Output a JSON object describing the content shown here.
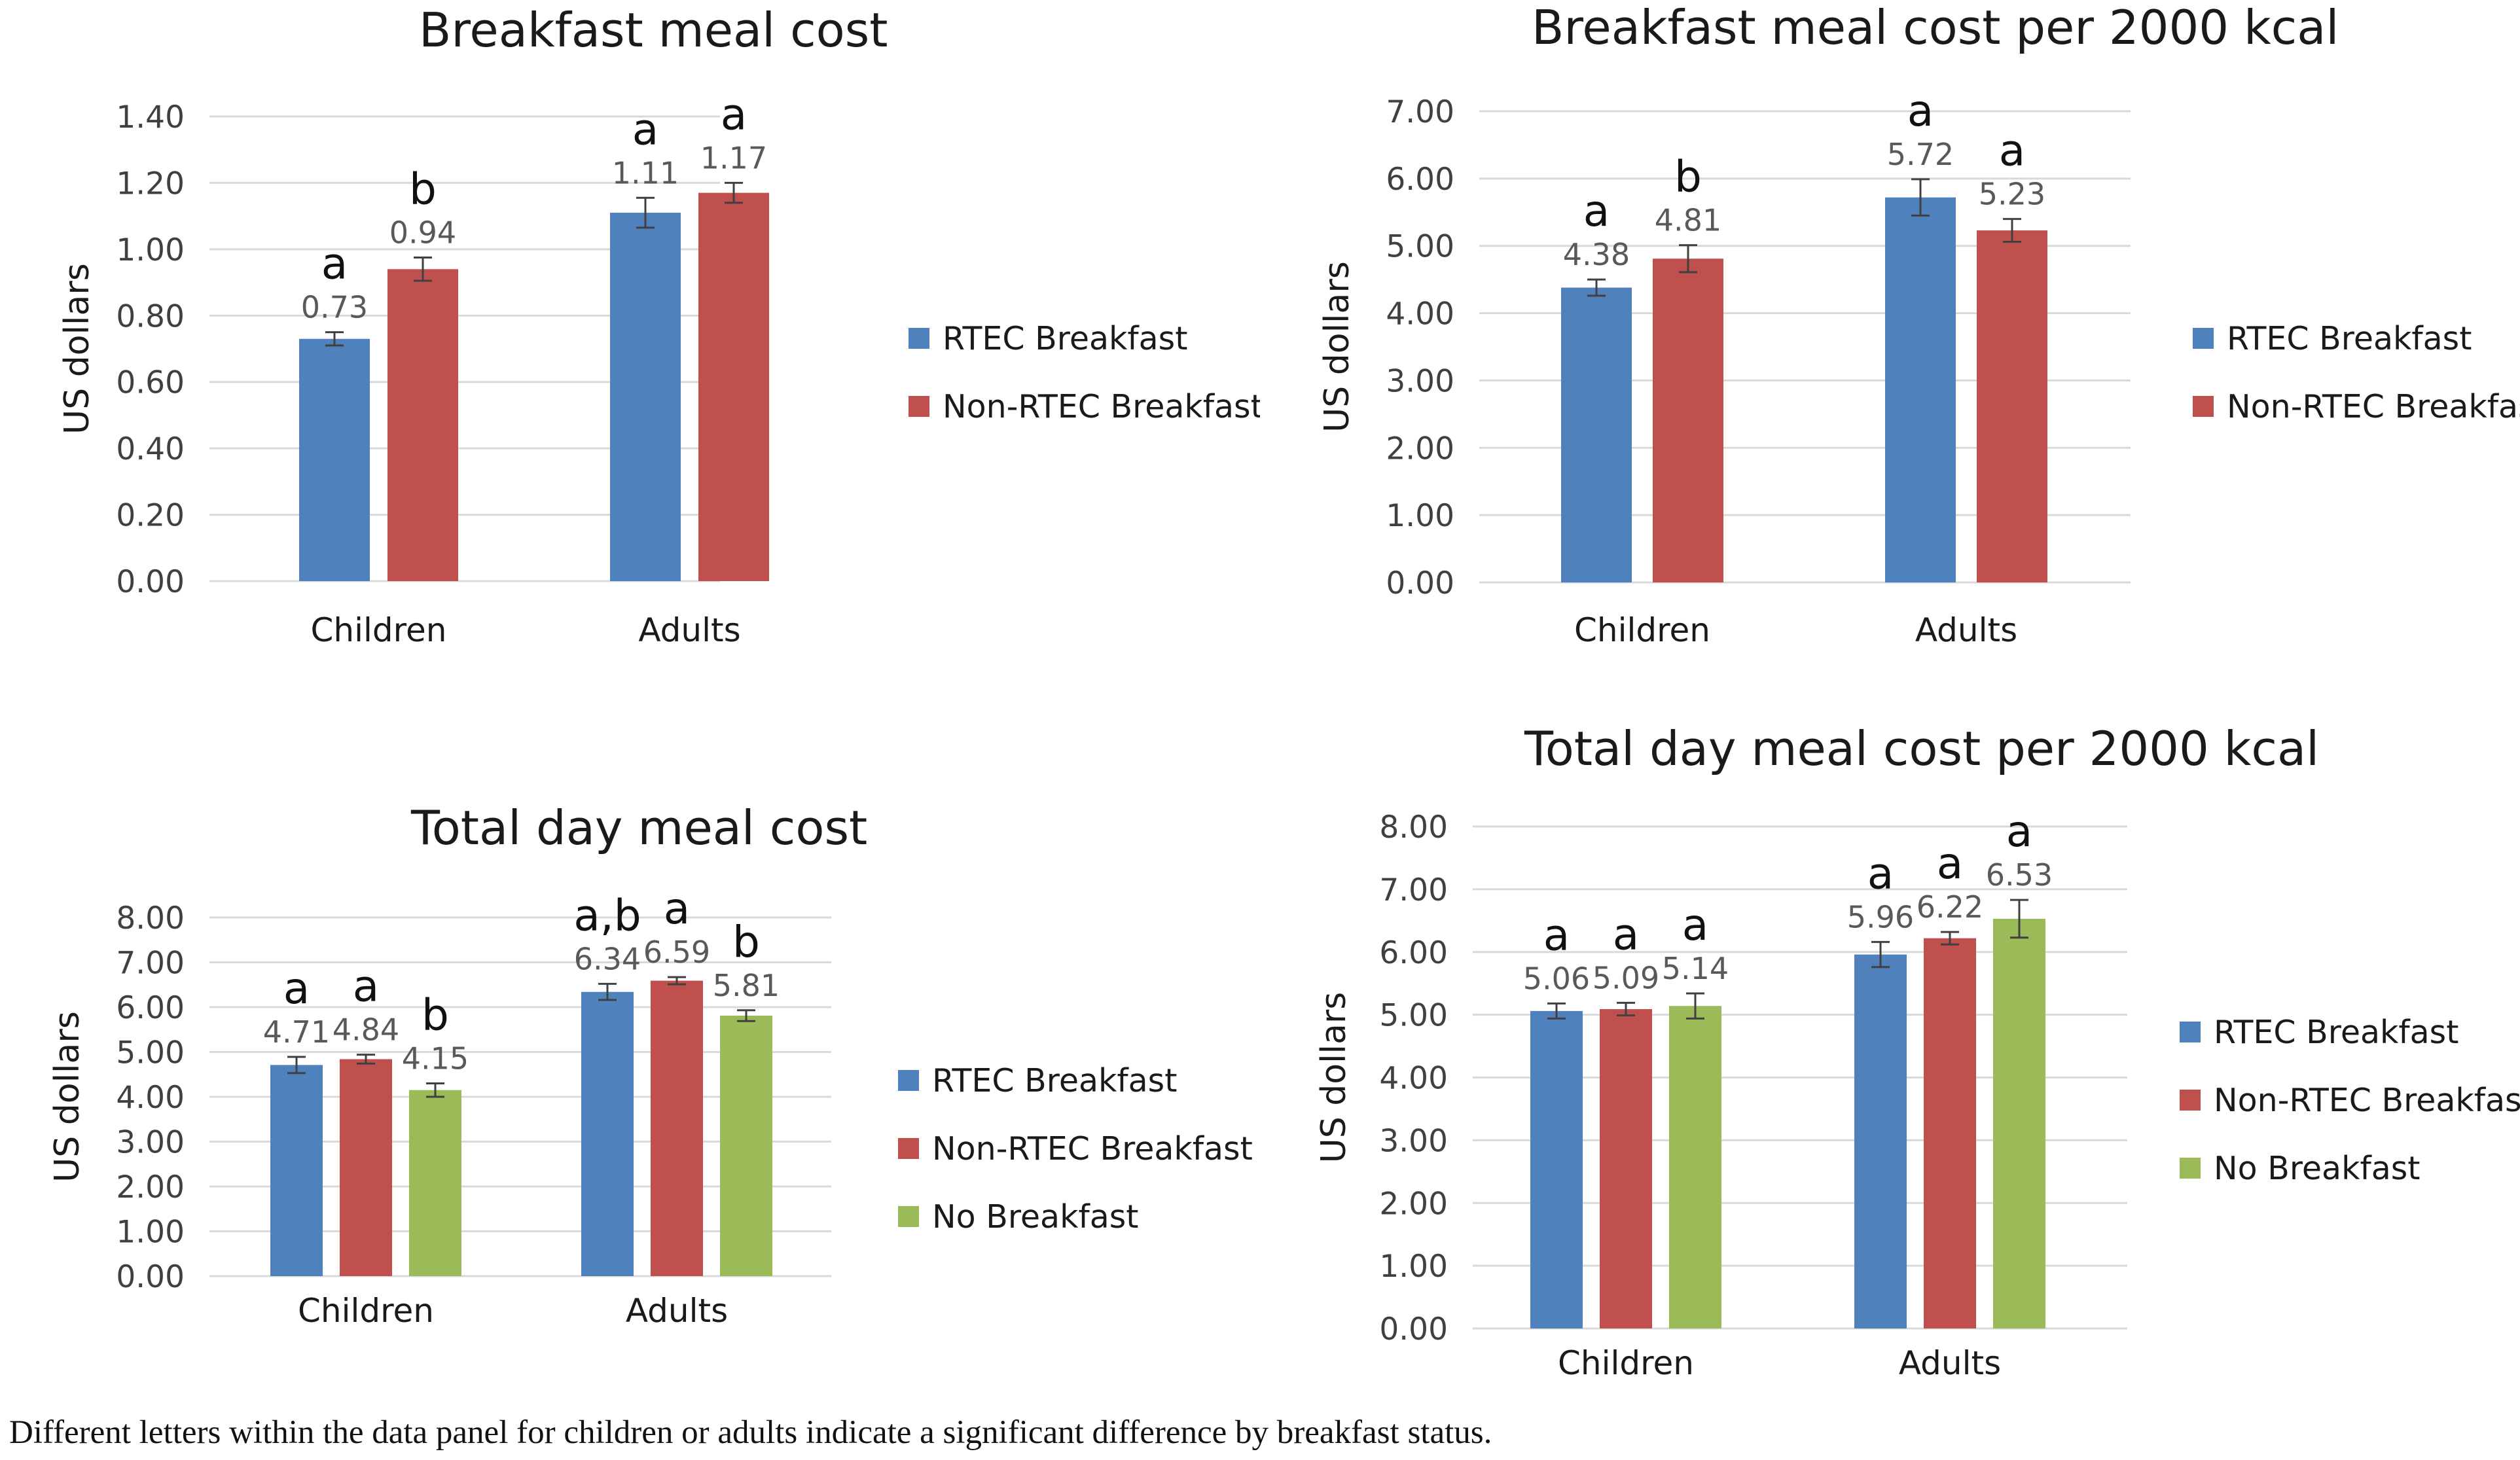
{
  "colors": {
    "rtec": "#4F81BD",
    "non_rtec": "#C0504D",
    "none": "#9BBB59",
    "grid": "#D9D9D9",
    "text": "#404040",
    "value": "#595959"
  },
  "footnote": "Different letters within the data panel for children or adults indicate a significant difference by breakfast status.",
  "chart_data": [
    {
      "type": "bar",
      "title": "Breakfast meal cost",
      "ylabel": "US dollars",
      "xlabel": "",
      "ylim": [
        0,
        1.4
      ],
      "yticks": [
        "0.00",
        "0.20",
        "0.40",
        "0.60",
        "0.80",
        "1.00",
        "1.20",
        "1.40"
      ],
      "grid": true,
      "legend_position": "right",
      "categories": [
        "Children",
        "Adults"
      ],
      "series": [
        {
          "name": "RTEC Breakfast",
          "color": "#4F81BD",
          "values": [
            0.73,
            1.11
          ],
          "labels": [
            "0.73",
            "1.11"
          ],
          "errors": [
            0.02,
            0.045
          ],
          "letters": [
            "a",
            "a"
          ]
        },
        {
          "name": "Non-RTEC Breakfast",
          "color": "#C0504D",
          "values": [
            0.94,
            1.17
          ],
          "labels": [
            "0.94",
            "1.17"
          ],
          "errors": [
            0.035,
            0.03
          ],
          "letters": [
            "b",
            "a"
          ]
        }
      ]
    },
    {
      "type": "bar",
      "title": "Breakfast meal cost per 2000 kcal",
      "ylabel": "US dollars",
      "xlabel": "",
      "ylim": [
        0,
        7
      ],
      "yticks": [
        "0.00",
        "1.00",
        "2.00",
        "3.00",
        "4.00",
        "5.00",
        "6.00",
        "7.00"
      ],
      "grid": true,
      "legend_position": "right",
      "categories": [
        "Children",
        "Adults"
      ],
      "series": [
        {
          "name": "RTEC Breakfast",
          "color": "#4F81BD",
          "values": [
            4.38,
            5.72
          ],
          "labels": [
            "4.38",
            "5.72"
          ],
          "errors": [
            0.12,
            0.27
          ],
          "letters": [
            "a",
            "a"
          ]
        },
        {
          "name": "Non-RTEC Breakfast",
          "color": "#C0504D",
          "values": [
            4.81,
            5.23
          ],
          "labels": [
            "4.81",
            "5.23"
          ],
          "errors": [
            0.2,
            0.17
          ],
          "letters": [
            "b",
            "a"
          ]
        }
      ]
    },
    {
      "type": "bar",
      "title": "Total day meal cost",
      "ylabel": "US dollars",
      "xlabel": "",
      "ylim": [
        0,
        8
      ],
      "yticks": [
        "0.00",
        "1.00",
        "2.00",
        "3.00",
        "4.00",
        "5.00",
        "6.00",
        "7.00",
        "8.00"
      ],
      "grid": true,
      "legend_position": "right",
      "categories": [
        "Children",
        "Adults"
      ],
      "series": [
        {
          "name": "RTEC Breakfast",
          "color": "#4F81BD",
          "values": [
            4.71,
            6.34
          ],
          "labels": [
            "4.71",
            "6.34"
          ],
          "errors": [
            0.18,
            0.18
          ],
          "letters": [
            "a",
            "a,b"
          ]
        },
        {
          "name": "Non-RTEC Breakfast",
          "color": "#C0504D",
          "values": [
            4.84,
            6.59
          ],
          "labels": [
            "4.84",
            "6.59"
          ],
          "errors": [
            0.1,
            0.08
          ],
          "letters": [
            "a",
            "a"
          ]
        },
        {
          "name": "No Breakfast",
          "color": "#9BBB59",
          "values": [
            4.15,
            5.81
          ],
          "labels": [
            "4.15",
            "5.81"
          ],
          "errors": [
            0.15,
            0.12
          ],
          "letters": [
            "b",
            "b"
          ]
        }
      ]
    },
    {
      "type": "bar",
      "title": "Total day meal cost per 2000 kcal",
      "ylabel": "US dollars",
      "xlabel": "",
      "ylim": [
        0,
        8
      ],
      "yticks": [
        "0.00",
        "1.00",
        "2.00",
        "3.00",
        "4.00",
        "5.00",
        "6.00",
        "7.00",
        "8.00"
      ],
      "grid": true,
      "legend_position": "right",
      "categories": [
        "Children",
        "Adults"
      ],
      "series": [
        {
          "name": "RTEC Breakfast",
          "color": "#4F81BD",
          "values": [
            5.06,
            5.96
          ],
          "labels": [
            "5.06",
            "5.96"
          ],
          "errors": [
            0.12,
            0.2
          ],
          "letters": [
            "a",
            "a"
          ]
        },
        {
          "name": "Non-RTEC Breakfast",
          "color": "#C0504D",
          "values": [
            5.09,
            6.22
          ],
          "labels": [
            "5.09",
            "6.22"
          ],
          "errors": [
            0.1,
            0.1
          ],
          "letters": [
            "a",
            "a"
          ]
        },
        {
          "name": "No Breakfast",
          "color": "#9BBB59",
          "values": [
            5.14,
            6.53
          ],
          "labels": [
            "5.14",
            "6.53"
          ],
          "errors": [
            0.2,
            0.3
          ],
          "letters": [
            "a",
            "a"
          ]
        }
      ]
    }
  ]
}
